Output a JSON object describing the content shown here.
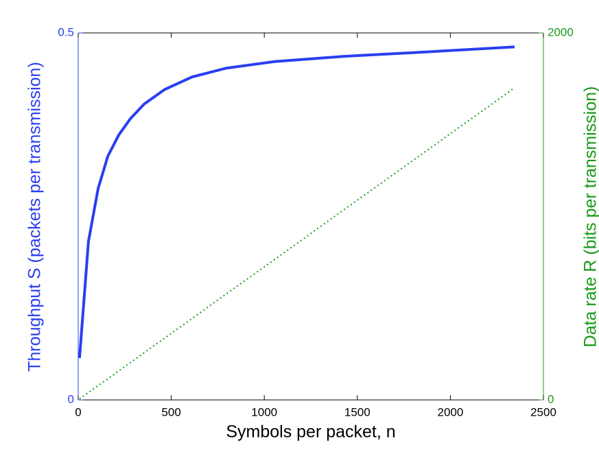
{
  "chart_data": {
    "type": "line",
    "x_label": "Symbols per packet, n",
    "y_label": "Throughput S (packets per transmission)",
    "y2_label": "Data rate R (bits per transmission)",
    "x": [
      7,
      55,
      107,
      159,
      218,
      280,
      354,
      465,
      612,
      796,
      1055,
      1423,
      1792,
      2345
    ],
    "series": [
      {
        "name": "Throughput S",
        "color": "#2a3ff0",
        "dash": "solid",
        "axis": "y",
        "values": [
          0.057,
          0.216,
          0.288,
          0.332,
          0.361,
          0.383,
          0.403,
          0.423,
          0.44,
          0.452,
          0.461,
          0.468,
          0.473,
          0.481
        ]
      },
      {
        "name": "Data rate R",
        "color": "#1a9a1a",
        "dash": "dotted",
        "axis": "y2",
        "values": [
          5,
          40,
          78,
          115,
          158,
          203,
          257,
          337,
          444,
          578,
          765,
          1033,
          1300,
          1701
        ]
      }
    ],
    "xlim": [
      0,
      2500
    ],
    "xticks": [
      0,
      500,
      1000,
      1500,
      2000,
      2500
    ],
    "ylim": [
      0,
      0.5
    ],
    "yticks": [
      0,
      0.5
    ],
    "y2lim": [
      0,
      2000
    ],
    "y2ticks": [
      0,
      2000
    ],
    "grid": false
  }
}
